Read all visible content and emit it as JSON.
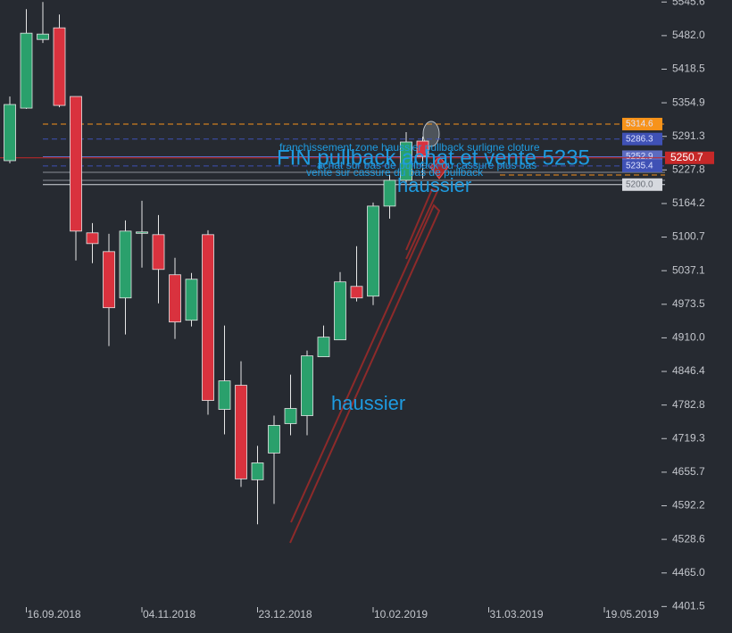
{
  "chart_data": {
    "type": "candlestick",
    "categories": [
      null,
      "16.09.2018",
      null,
      null,
      null,
      null,
      null,
      null,
      "04.11.2018",
      null,
      null,
      null,
      null,
      null,
      null,
      "23.12.2018",
      null,
      null,
      null,
      null,
      null,
      null,
      "10.02.2019",
      null,
      null,
      null,
      null,
      null,
      null,
      "31.03.2019",
      null,
      null,
      null,
      null,
      null,
      null,
      "19.05.2019",
      null,
      null,
      null
    ],
    "open": [
      5245.3,
      5344.8,
      5474.7,
      5496.7,
      5366.8,
      5108.7,
      5073.2,
      4985.5,
      5110.4,
      5105.3,
      5029.4,
      4943.3,
      5105.3,
      4774.6,
      4820.2,
      4641.4,
      4692.0,
      4747.7,
      4762.8,
      4874.2,
      4906.2,
      5007.4,
      4988.9,
      5159.3,
      5208.2,
      5282.4,
      null,
      null,
      null,
      null,
      null,
      null,
      null,
      null,
      null,
      null,
      null,
      null,
      null,
      null
    ],
    "high": [
      5366.8,
      5532.1,
      5545.6,
      5522.0,
      5366.8,
      5127.2,
      5107.0,
      5132.3,
      5169.4,
      5142.4,
      5061.4,
      5032.8,
      5113.7,
      4933.2,
      4865.7,
      4705.5,
      4762.8,
      4840.4,
      4886.0,
      4933.2,
      5034.4,
      5083.4,
      5166.0,
      5218.3,
      5299.3,
      5290.9,
      null,
      null,
      null,
      null,
      null,
      null,
      null,
      null,
      null,
      null,
      null,
      null,
      null,
      null
    ],
    "low": [
      5240.3,
      5343.2,
      5468.0,
      5346.5,
      5056.4,
      5051.3,
      4894.4,
      4916.3,
      5042.9,
      4975.4,
      4907.9,
      4931.5,
      4764.5,
      4727.4,
      4627.9,
      4557.0,
      4595.8,
      4725.7,
      4725.7,
      4874.2,
      4906.2,
      4978.8,
      4972.0,
      5135.7,
      5194.7,
      5211.6,
      null,
      null,
      null,
      null,
      null,
      null,
      null,
      null,
      null,
      null,
      null,
      null,
      null,
      null
    ],
    "close": [
      5351.6,
      5486.6,
      5484.9,
      5349.9,
      5112.0,
      5088.4,
      4967.0,
      5112.0,
      5110.4,
      5039.5,
      4940.0,
      5020.9,
      4791.5,
      4828.6,
      4643.1,
      4673.4,
      4744.3,
      4776.3,
      4875.9,
      4911.3,
      5015.9,
      4985.5,
      5159.3,
      5208.2,
      5280.7,
      5253.7,
      null,
      null,
      null,
      null,
      null,
      null,
      null,
      null,
      null,
      null,
      null,
      null,
      null,
      null
    ],
    "up_color": "#2aa06c",
    "down_color": "#d9323e",
    "ylim": [
      4397,
      5549.4
    ],
    "yticks": [
      5545.6,
      {
        "value": 5482.0,
        "label": "5482.0"
      },
      5418.5,
      5354.9,
      5291.3,
      5227.8,
      5164.2,
      5100.7,
      5037.1,
      4973.5,
      {
        "value": 4910.0,
        "label": "4910.0"
      },
      4846.4,
      4782.8,
      4719.3,
      4655.7,
      4592.2,
      4528.6,
      {
        "value": 4465.0,
        "label": "4465.0"
      },
      4401.5
    ],
    "price_levels": [
      {
        "value": 5314.6,
        "color": "#f7931a",
        "dashed": true
      },
      {
        "value": 5286.3,
        "color": "#3f51b5",
        "dashed": true
      },
      {
        "value": 5252.9,
        "color": "#5c6bc0",
        "dashed": false
      },
      {
        "value": 5250.7,
        "color": "#c62828",
        "dashed": false
      },
      {
        "value": 5235.4,
        "color": "#3f51b5",
        "dashed": true
      },
      {
        "value": {
          "value": 5200.0,
          "label": "5200.0"
        },
        "color": "#d6d9df",
        "dashed": false
      }
    ],
    "annotations": [
      "franchissement zone haussier pullback surligne cloture",
      "FIN pullback achat et vente 5235",
      "achat sur bas de pullback ou cassure plus bas",
      "vente sur cassure du bas de pullback",
      "haussier",
      "haussier"
    ]
  }
}
